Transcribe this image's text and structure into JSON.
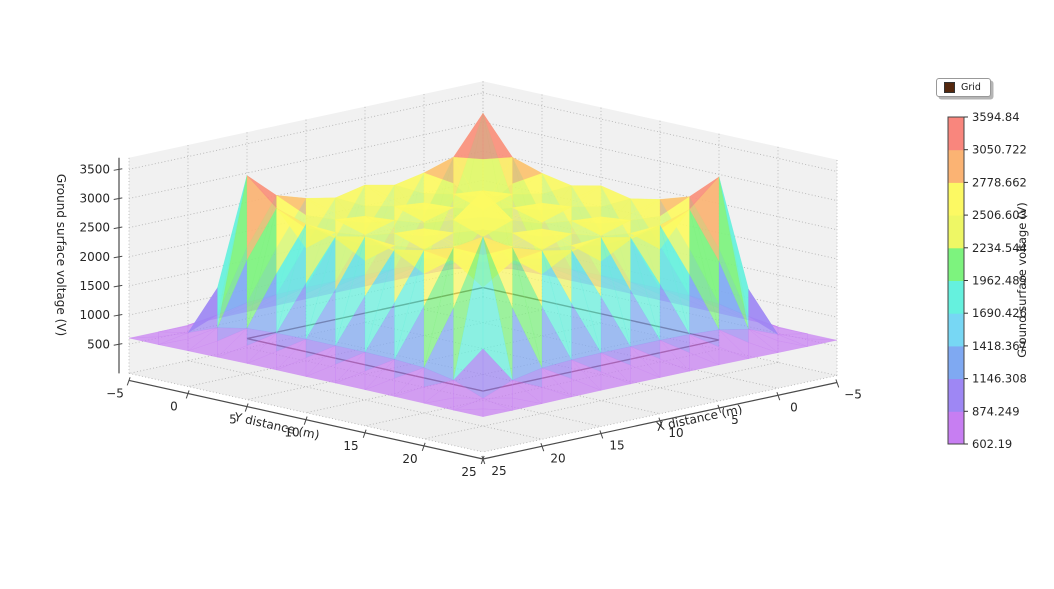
{
  "figure": {
    "background": "#ffffff"
  },
  "legend": {
    "items": [
      {
        "label": "Grid",
        "marker_color": "#54280e"
      }
    ]
  },
  "chart_data": {
    "type": "surface",
    "title": "",
    "xlabel": "X distance (m)",
    "ylabel": "Y distance (m)",
    "zlabel": "Ground surface voltage (V)",
    "xlim": [
      -5,
      25
    ],
    "ylim": [
      -5,
      25
    ],
    "zlim": [
      0,
      3700
    ],
    "x_ticks": [
      -5,
      0,
      5,
      10,
      15,
      20,
      25
    ],
    "y_ticks": [
      -5,
      0,
      5,
      10,
      15,
      20,
      25
    ],
    "z_ticks": [
      500,
      1000,
      1500,
      2000,
      2500,
      3000,
      3500
    ],
    "grid_on": true,
    "colorbar": {
      "label": "Ground surface voltage (V)",
      "levels": [
        602.19,
        874.249,
        1146.308,
        1418.367,
        1690.426,
        1962.485,
        2234.544,
        2506.603,
        2778.662,
        3050.722,
        3594.84
      ],
      "band_colors": [
        "#c77ef2",
        "#9e87f4",
        "#7fa9f2",
        "#77d7f4",
        "#65f1de",
        "#7df37e",
        "#eef765",
        "#fcf963",
        "#fbb373",
        "#f9867d"
      ]
    },
    "grid_outline": {
      "x_range": [
        0,
        20
      ],
      "y_range": [
        0,
        20
      ],
      "z": 602.19,
      "color": "#4a1a0c"
    },
    "surface": {
      "x": [
        -5,
        -2.5,
        0,
        2.5,
        5,
        7.5,
        10,
        12.5,
        15,
        17.5,
        20,
        22.5,
        25
      ],
      "y": [
        -5,
        -2.5,
        0,
        2.5,
        5,
        7.5,
        10,
        12.5,
        15,
        17.5,
        20,
        22.5,
        25
      ],
      "z_min": 602.19,
      "z_max": 3594.84,
      "z": [
        [
          605,
          605,
          610,
          615,
          620,
          620,
          620,
          620,
          620,
          615,
          610,
          605,
          605
        ],
        [
          605,
          700,
          900,
          1000,
          1030,
          1040,
          1040,
          1040,
          1030,
          1000,
          900,
          700,
          605
        ],
        [
          610,
          900,
          3594.84,
          2950,
          2790,
          2690,
          2800,
          2690,
          2790,
          2950,
          3400,
          900,
          610
        ],
        [
          615,
          1000,
          2950,
          2160,
          2540,
          2170,
          2550,
          2170,
          2540,
          2160,
          2950,
          1000,
          615
        ],
        [
          620,
          1030,
          2790,
          2540,
          2710,
          2530,
          2720,
          2530,
          2710,
          2540,
          2790,
          1030,
          620
        ],
        [
          620,
          1040,
          2690,
          2170,
          2530,
          2140,
          2540,
          2140,
          2530,
          2170,
          2690,
          1040,
          620
        ],
        [
          620,
          1040,
          2800,
          2550,
          2720,
          2540,
          3150,
          2540,
          2720,
          2550,
          2800,
          1040,
          620
        ],
        [
          620,
          1040,
          2690,
          2170,
          2530,
          2140,
          2540,
          2140,
          2530,
          2170,
          2690,
          1040,
          620
        ],
        [
          620,
          1030,
          2790,
          2540,
          2710,
          2530,
          2720,
          2530,
          2710,
          2540,
          2790,
          1030,
          620
        ],
        [
          615,
          1000,
          2950,
          2160,
          2540,
          2170,
          2540,
          2170,
          2540,
          2160,
          2950,
          1000,
          615
        ],
        [
          610,
          900,
          3400,
          2950,
          2790,
          2690,
          2800,
          2690,
          2790,
          2950,
          3250,
          900,
          610
        ],
        [
          605,
          700,
          900,
          1000,
          1030,
          1040,
          1040,
          1040,
          1030,
          1000,
          900,
          700,
          605
        ],
        [
          605,
          605,
          610,
          615,
          620,
          620,
          620,
          620,
          620,
          615,
          610,
          605,
          605
        ]
      ]
    },
    "style": {
      "pane_color": "#f1f1f1",
      "floor_color": "#eeeeee",
      "grid_color": "#b5b5b5",
      "axis_color": "#4a4a4a",
      "tick_color": "#262626",
      "surface_alpha": 0.72
    }
  }
}
